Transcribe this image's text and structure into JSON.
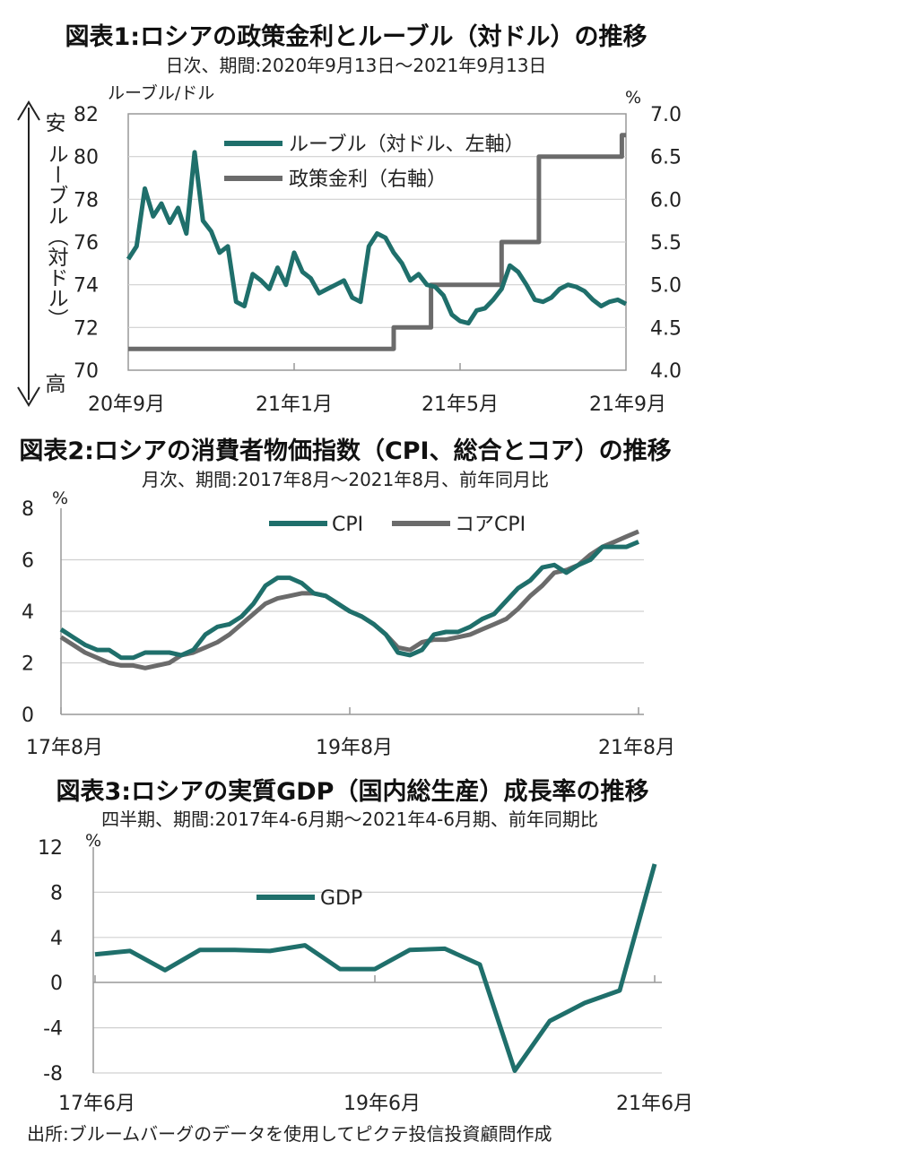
{
  "colors": {
    "teal": "#1f6f6b",
    "gray": "#6b6b6b",
    "grid": "#d0d0d0",
    "axis": "#999999"
  },
  "chart_data": [
    {
      "type": "line",
      "title": "図表1:ロシアの政策金利とルーブル（対ドル）の推移",
      "subtitle": "日次、期間:2020年9月13日～2021年9月13日",
      "left_unit": "ルーブル/ドル",
      "right_unit": "%",
      "vertical_label_top": "安",
      "vertical_label_mid": "ルーブル（対ドル）",
      "vertical_label_bottom": "高",
      "ylim_left": [
        70,
        82
      ],
      "ylim_right": [
        4.0,
        7.0
      ],
      "yticks_left": [
        "82",
        "80",
        "78",
        "76",
        "74",
        "72",
        "70"
      ],
      "yticks_right": [
        "7.0",
        "6.5",
        "6.0",
        "5.5",
        "5.0",
        "4.5",
        "4.0"
      ],
      "xticks": [
        "20年9月",
        "21年1月",
        "21年5月",
        "21年9月"
      ],
      "legend": [
        "ルーブル（対ドル、左軸）",
        "政策金利（右軸）"
      ],
      "series": [
        {
          "name": "ルーブル（対ドル、左軸）",
          "axis": "left",
          "x": [
            0,
            0.2,
            0.4,
            0.6,
            0.8,
            1.0,
            1.2,
            1.4,
            1.6,
            1.8,
            2.0,
            2.2,
            2.4,
            2.6,
            2.8,
            3.0,
            3.2,
            3.4,
            3.6,
            3.8,
            4.0,
            4.2,
            4.4,
            4.6,
            4.8,
            5.0,
            5.2,
            5.4,
            5.6,
            5.8,
            6.0,
            6.2,
            6.4,
            6.6,
            6.8,
            7.0,
            7.2,
            7.4,
            7.6,
            7.8,
            8.0,
            8.2,
            8.4,
            8.6,
            8.8,
            9.0,
            9.2,
            9.4,
            9.6,
            9.8,
            10.0,
            10.2,
            10.4,
            10.6,
            10.8,
            11.0,
            11.2,
            11.4,
            11.6,
            11.8,
            12.0
          ],
          "values": [
            75.2,
            75.8,
            78.5,
            77.2,
            77.8,
            76.9,
            77.6,
            76.4,
            80.2,
            77.0,
            76.5,
            75.5,
            75.8,
            73.2,
            73.0,
            74.5,
            74.2,
            73.8,
            74.8,
            74.0,
            75.5,
            74.6,
            74.3,
            73.6,
            73.8,
            74.0,
            74.2,
            73.4,
            73.2,
            75.8,
            76.4,
            76.2,
            75.5,
            75.0,
            74.2,
            74.5,
            74.0,
            73.9,
            73.5,
            72.6,
            72.3,
            72.2,
            72.8,
            72.9,
            73.3,
            73.8,
            74.9,
            74.6,
            74.0,
            73.3,
            73.2,
            73.4,
            73.8,
            74.0,
            73.9,
            73.7,
            73.3,
            73.0,
            73.2,
            73.3,
            73.1
          ]
        },
        {
          "name": "政策金利（右軸）",
          "axis": "right",
          "x": [
            0,
            3.0,
            6.4,
            6.4,
            7.3,
            7.3,
            9.0,
            9.0,
            9.9,
            9.9,
            11.5,
            11.5,
            11.9,
            11.9,
            12.0
          ],
          "values": [
            4.25,
            4.25,
            4.25,
            4.5,
            4.5,
            5.0,
            5.0,
            5.5,
            5.5,
            6.5,
            6.5,
            6.5,
            6.5,
            6.75,
            6.75
          ]
        }
      ]
    },
    {
      "type": "line",
      "title": "図表2:ロシアの消費者物価指数（CPI、総合とコア）の推移",
      "subtitle": "月次、期間:2017年8月～2021年8月、前年同月比",
      "unit": "%",
      "ylim": [
        0,
        8
      ],
      "yticks": [
        "8",
        "6",
        "4",
        "2",
        "0"
      ],
      "xticks": [
        "17年8月",
        "19年8月",
        "21年8月"
      ],
      "legend": [
        "CPI",
        "コアCPI"
      ],
      "series": [
        {
          "name": "CPI",
          "x": [
            0,
            1,
            2,
            3,
            4,
            5,
            6,
            7,
            8,
            9,
            10,
            11,
            12,
            13,
            14,
            15,
            16,
            17,
            18,
            19,
            20,
            21,
            22,
            23,
            24,
            25,
            26,
            27,
            28,
            29,
            30,
            31,
            32,
            33,
            34,
            35,
            36,
            37,
            38,
            39,
            40,
            41,
            42,
            43,
            44,
            45,
            46,
            47,
            48
          ],
          "values": [
            3.3,
            3.0,
            2.7,
            2.5,
            2.5,
            2.2,
            2.2,
            2.4,
            2.4,
            2.4,
            2.3,
            2.5,
            3.1,
            3.4,
            3.5,
            3.8,
            4.3,
            5.0,
            5.3,
            5.3,
            5.1,
            4.7,
            4.6,
            4.3,
            4.0,
            3.8,
            3.5,
            3.1,
            2.4,
            2.3,
            2.5,
            3.1,
            3.2,
            3.2,
            3.4,
            3.7,
            3.9,
            4.4,
            4.9,
            5.2,
            5.7,
            5.8,
            5.5,
            5.8,
            6.0,
            6.5,
            6.5,
            6.5,
            6.7
          ]
        },
        {
          "name": "コアCPI",
          "x": [
            0,
            1,
            2,
            3,
            4,
            5,
            6,
            7,
            8,
            9,
            10,
            11,
            12,
            13,
            14,
            15,
            16,
            17,
            18,
            19,
            20,
            21,
            22,
            23,
            24,
            25,
            26,
            27,
            28,
            29,
            30,
            31,
            32,
            33,
            34,
            35,
            36,
            37,
            38,
            39,
            40,
            41,
            42,
            43,
            44,
            45,
            46,
            47,
            48
          ],
          "values": [
            3.0,
            2.7,
            2.4,
            2.2,
            2.0,
            1.9,
            1.9,
            1.8,
            1.9,
            2.0,
            2.3,
            2.4,
            2.6,
            2.8,
            3.1,
            3.5,
            3.9,
            4.3,
            4.5,
            4.6,
            4.7,
            4.7,
            4.6,
            4.3,
            4.0,
            3.8,
            3.5,
            3.1,
            2.6,
            2.5,
            2.8,
            2.9,
            2.9,
            3.0,
            3.1,
            3.3,
            3.5,
            3.7,
            4.1,
            4.6,
            5.0,
            5.5,
            5.6,
            5.8,
            6.2,
            6.5,
            6.7,
            6.9,
            7.1
          ]
        }
      ]
    },
    {
      "type": "line",
      "title": "図表3:ロシアの実質GDP（国内総生産）成長率の推移",
      "subtitle": "四半期、期間:2017年4-6月期～2021年4-6月期、前年同期比",
      "unit": "%",
      "ylim": [
        -8,
        12
      ],
      "yticks": [
        "12",
        "8",
        "4",
        "0",
        "-4",
        "-8"
      ],
      "xticks": [
        "17年6月",
        "19年6月",
        "21年6月"
      ],
      "legend": [
        "GDP"
      ],
      "series": [
        {
          "name": "GDP",
          "x": [
            0,
            1,
            2,
            3,
            4,
            5,
            6,
            7,
            8,
            9,
            10,
            11,
            12,
            13,
            14,
            15,
            16
          ],
          "values": [
            2.5,
            2.8,
            1.1,
            2.9,
            2.9,
            2.8,
            3.3,
            1.2,
            1.2,
            2.9,
            3.0,
            1.6,
            -7.8,
            -3.4,
            -1.8,
            -0.7,
            10.5
          ]
        }
      ]
    }
  ],
  "source": "出所:ブルームバーグのデータを使用してピクテ投信投資顧問作成"
}
